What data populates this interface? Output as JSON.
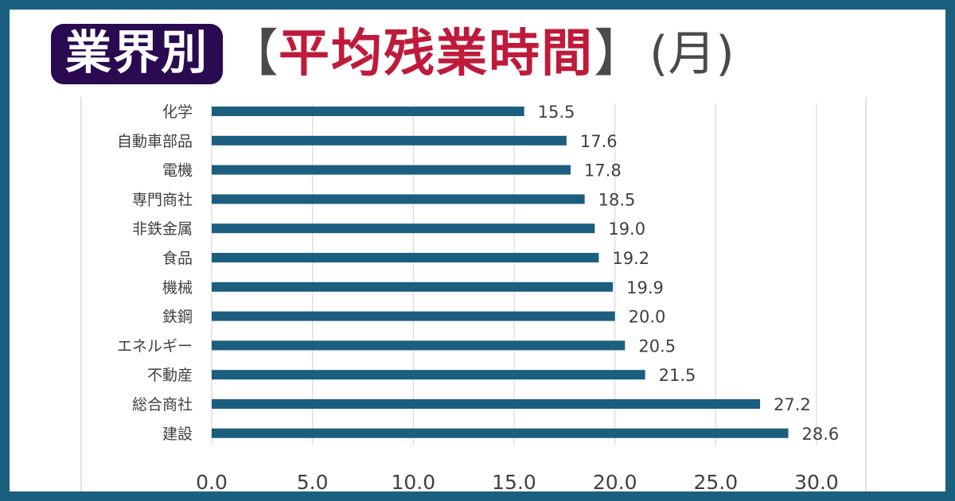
{
  "title": {
    "badge": "業界別",
    "bracket_open": "【",
    "highlight": "平均残業時間",
    "bracket_close": "】",
    "suffix": "(月)"
  },
  "colors": {
    "background": "#1a6180",
    "bar": "#1b5e80",
    "badge": "#2a0a50",
    "highlight": "#c01a3a"
  },
  "chart_data": {
    "type": "bar",
    "orientation": "horizontal",
    "categories": [
      "化学",
      "自動車部品",
      "電機",
      "専門商社",
      "非鉄金属",
      "食品",
      "機械",
      "鉄鋼",
      "エネルギー",
      "不動産",
      "総合商社",
      "建設"
    ],
    "values": [
      15.5,
      17.6,
      17.8,
      18.5,
      19.0,
      19.2,
      19.9,
      20.0,
      20.5,
      21.5,
      27.2,
      28.6
    ],
    "value_labels": [
      "15.5",
      "17.6",
      "17.8",
      "18.5",
      "19.0",
      "19.2",
      "19.9",
      "20.0",
      "20.5",
      "21.5",
      "27.2",
      "28.6"
    ],
    "xticks": [
      "0.0",
      "5.0",
      "10.0",
      "15.0",
      "20.0",
      "25.0",
      "30.0"
    ],
    "xlim": [
      0,
      30
    ],
    "grid": true,
    "legend": false
  }
}
